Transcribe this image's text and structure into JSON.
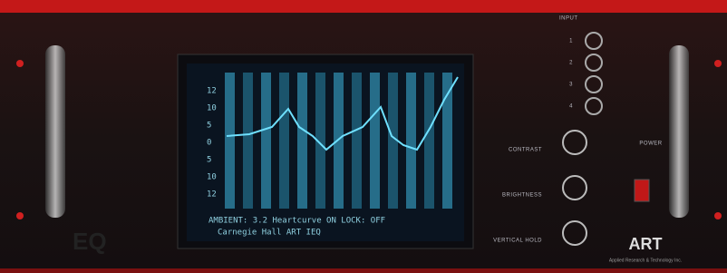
{
  "panel": {
    "brand": "ART",
    "maker": "Applied Research & Technology Inc.",
    "logo": "EQ",
    "input_label": "INPUT",
    "input_numbers": [
      "1",
      "2",
      "3",
      "4"
    ],
    "controls": [
      "CONTRAST",
      "BRIGHTNESS",
      "VERTICAL HOLD"
    ],
    "power": "POWER"
  },
  "screen": {
    "scale_labels": [
      "12",
      "10",
      "5",
      "0",
      "5",
      "10",
      "12"
    ],
    "status_line": "AMBIENT: 3.2   Heartcurve ON   LOCK: OFF",
    "venue_line": "Carnegie Hall    ART IEQ"
  }
}
